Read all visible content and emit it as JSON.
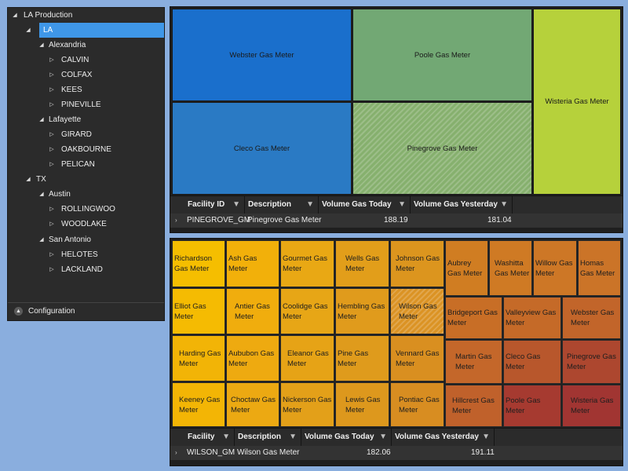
{
  "tree": {
    "nodes": [
      {
        "label": "LA Production",
        "expander": "◢"
      },
      {
        "label": "LA",
        "expander": "◢"
      },
      {
        "label": "Alexandria",
        "expander": "◢"
      },
      {
        "label": "CALVIN",
        "expander": "▷"
      },
      {
        "label": "COLFAX",
        "expander": "▷"
      },
      {
        "label": "KEES",
        "expander": "▷"
      },
      {
        "label": "PINEVILLE",
        "expander": "▷"
      },
      {
        "label": "Lafayette",
        "expander": "◢"
      },
      {
        "label": "GIRARD",
        "expander": "▷"
      },
      {
        "label": "OAKBOURNE",
        "expander": "▷"
      },
      {
        "label": "PELICAN",
        "expander": "▷"
      },
      {
        "label": "TX",
        "expander": "◢"
      },
      {
        "label": "Austin",
        "expander": "◢"
      },
      {
        "label": "ROLLINGWOO",
        "expander": "▷"
      },
      {
        "label": "WOODLAKE",
        "expander": "▷"
      },
      {
        "label": "San Antonio",
        "expander": "◢"
      },
      {
        "label": "HELOTES",
        "expander": "▷"
      },
      {
        "label": "LACKLAND",
        "expander": "▷"
      }
    ],
    "configuration_label": "Configuration",
    "configuration_icon": "▲"
  },
  "top_treemap": {
    "tiles": [
      {
        "label": "Webster Gas Meter",
        "color": "#1a6fcc"
      },
      {
        "label": "Poole Gas Meter",
        "color": "#72a874"
      },
      {
        "label": "Wisteria Gas Meter",
        "color": "#b6d13b"
      },
      {
        "label": "Cleco Gas Meter",
        "color": "#2a7ac4"
      },
      {
        "label": "Pinegrove Gas Meter",
        "color": "#86b06e"
      }
    ]
  },
  "top_grid": {
    "columns": [
      "Facility ID",
      "Description",
      "Volume Gas Today",
      "Volume Gas Yesterday"
    ],
    "filter_icon": "▼",
    "expander": "›",
    "row": {
      "facility_id": "PINEGROVE_GM",
      "description": "Pinegrove Gas Meter",
      "today": "188.19",
      "yesterday": "181.04"
    }
  },
  "bottom_treemap": {
    "tiles": [
      {
        "label": "Richardson Gas Meter",
        "color": "#f5be00"
      },
      {
        "label": "Ash Gas Meter",
        "color": "#f2b00a"
      },
      {
        "label": "Gourmet Gas Meter",
        "color": "#e9a814"
      },
      {
        "label": "Wells Gas Meter",
        "color": "#e29e1a"
      },
      {
        "label": "Johnson Gas Meter",
        "color": "#dc951e"
      },
      {
        "label": "Elliot Gas Meter",
        "color": "#f5bb02"
      },
      {
        "label": "Antier Gas Meter",
        "color": "#f0ad0d"
      },
      {
        "label": "Coolidge Gas Meter",
        "color": "#e7a616"
      },
      {
        "label": "Hembling Gas Meter",
        "color": "#e09b1c"
      },
      {
        "label": "Wilson Gas Meter",
        "color": "#db9324"
      },
      {
        "label": "Harding Gas Meter",
        "color": "#f2b406"
      },
      {
        "label": "Aububon Gas Meter",
        "color": "#eeaa10"
      },
      {
        "label": "Eleanor Gas Meter",
        "color": "#e6a316"
      },
      {
        "label": "Pine Gas Meter",
        "color": "#df9b1c"
      },
      {
        "label": "Vennard Gas Meter",
        "color": "#d98f20"
      },
      {
        "label": "Keeney Gas Meter",
        "color": "#f3b505"
      },
      {
        "label": "Choctaw Gas Meter",
        "color": "#eca912"
      },
      {
        "label": "Nickerson Gas Meter",
        "color": "#e3a019"
      },
      {
        "label": "Lewis Gas Meter",
        "color": "#dd981d"
      },
      {
        "label": "Pontiac Gas Meter",
        "color": "#d88d21"
      },
      {
        "label": "Aubrey Gas Meter",
        "color": "#d07d22"
      },
      {
        "label": "Washitta Gas Meter",
        "color": "#cf7a24"
      },
      {
        "label": "Willow Gas Meter",
        "color": "#cd7726"
      },
      {
        "label": "Homas Gas Meter",
        "color": "#cb7428"
      },
      {
        "label": "Bridgeport Gas Meter",
        "color": "#c86e26"
      },
      {
        "label": "Valleyview Gas Meter",
        "color": "#c56a28"
      },
      {
        "label": "Webster Gas Meter",
        "color": "#c2652a"
      },
      {
        "label": "Martin Gas Meter",
        "color": "#c4672a"
      },
      {
        "label": "Cleco Gas Meter",
        "color": "#b8572c"
      },
      {
        "label": "Pinegrove Gas Meter",
        "color": "#ad472f"
      },
      {
        "label": "Hillcrest Gas Meter",
        "color": "#c0612b"
      },
      {
        "label": "Poole Gas Meter",
        "color": "#a63a30"
      },
      {
        "label": "Wisteria Gas Meter",
        "color": "#a13532"
      }
    ]
  },
  "bottom_grid": {
    "columns": [
      "Facility",
      "Description",
      "Volume Gas Today",
      "Volume Gas Yesterday"
    ],
    "filter_icon": "▼",
    "expander": "›",
    "row": {
      "facility": "WILSON_GM",
      "description": "Wilson Gas Meter",
      "today": "182.06",
      "yesterday": "191.11"
    }
  }
}
